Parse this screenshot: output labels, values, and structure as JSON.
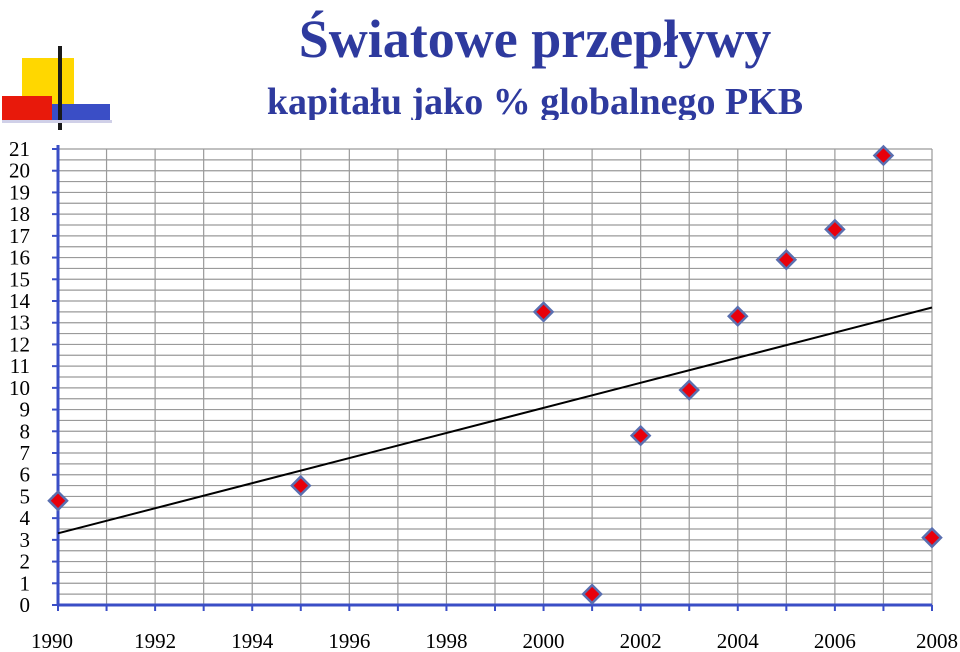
{
  "chart_data": {
    "type": "scatter",
    "title": "Światowe przepływy",
    "subtitle": "kapitału jako % globalnego PKB",
    "xlabel": "",
    "ylabel": "",
    "xlim": [
      1990,
      2008
    ],
    "ylim": [
      0,
      21
    ],
    "x_ticks": [
      "1990",
      "1992",
      "1994",
      "1996",
      "1998",
      "2000",
      "2002",
      "2004",
      "2006",
      "2008"
    ],
    "y_ticks": [
      "0",
      "1",
      "2",
      "3",
      "4",
      "5",
      "6",
      "7",
      "8",
      "9",
      "10",
      "11",
      "12",
      "13",
      "14",
      "15",
      "16",
      "17",
      "18",
      "19",
      "20",
      "21"
    ],
    "grid": true,
    "legend": "none",
    "marker": "diamond",
    "marker_color": "#e8000b",
    "marker_edge_color": "#5a6fb0",
    "trendline": {
      "type": "linear",
      "from": [
        1990,
        3.3
      ],
      "to": [
        2008,
        13.7
      ],
      "color": "#000000"
    },
    "points": [
      {
        "x": 1990,
        "y": 4.8
      },
      {
        "x": 1995,
        "y": 5.5
      },
      {
        "x": 2000,
        "y": 13.5
      },
      {
        "x": 2001,
        "y": 0.5
      },
      {
        "x": 2002,
        "y": 7.8
      },
      {
        "x": 2003,
        "y": 9.9
      },
      {
        "x": 2004,
        "y": 13.3
      },
      {
        "x": 2005,
        "y": 15.9
      },
      {
        "x": 2006,
        "y": 17.3
      },
      {
        "x": 2007,
        "y": 20.7
      },
      {
        "x": 2008,
        "y": 3.1
      }
    ]
  }
}
